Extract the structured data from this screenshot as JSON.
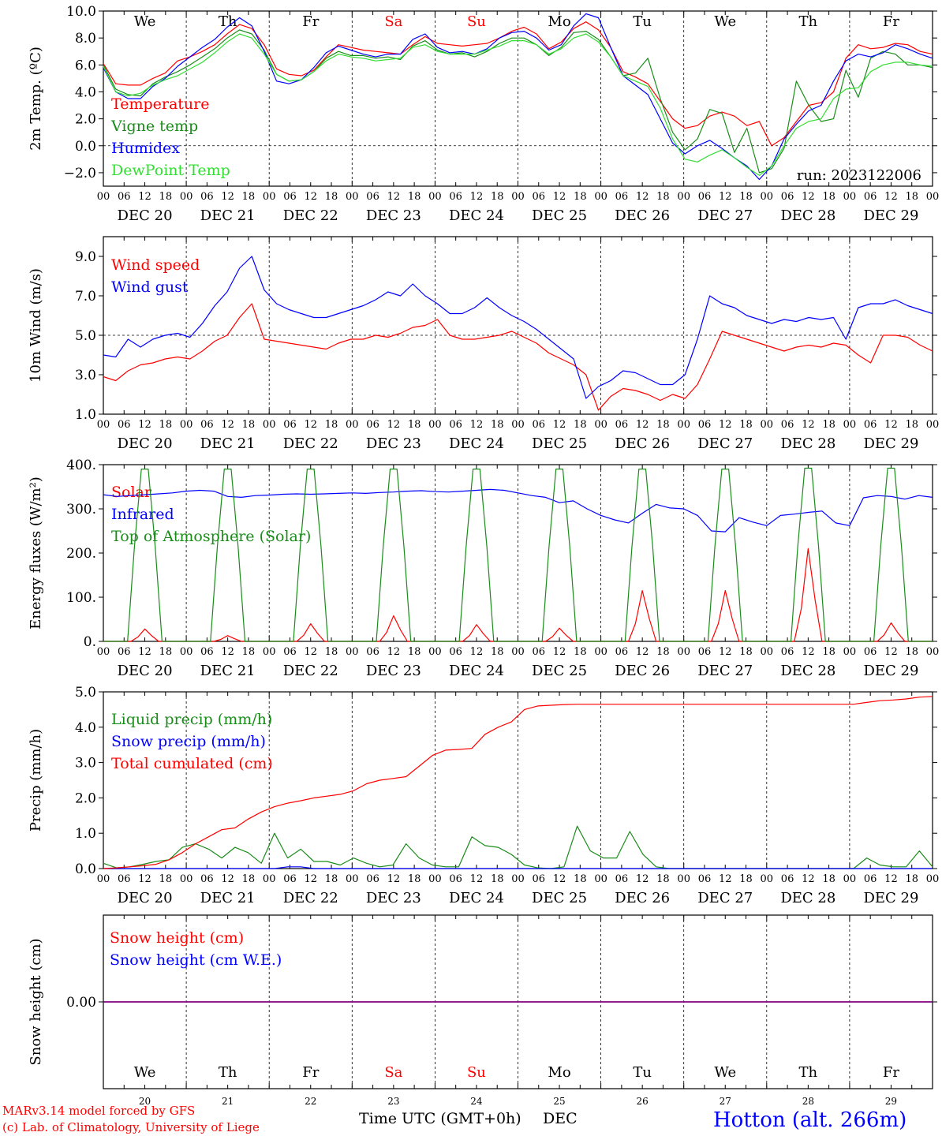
{
  "colors": {
    "red": "#ff0000",
    "green": "#1a8c1a",
    "blue": "#0000ff",
    "lightgreen": "#33dd33",
    "purple": "#800080",
    "black": "#000000"
  },
  "days": [
    "DEC 20",
    "DEC 21",
    "DEC 22",
    "DEC 23",
    "DEC 24",
    "DEC 25",
    "DEC 26",
    "DEC 27",
    "DEC 28",
    "DEC 29"
  ],
  "hour_ticks": [
    "00",
    "06",
    "12",
    "18"
  ],
  "weekdays": [
    "We",
    "Th",
    "Fr",
    "Sa",
    "Su",
    "Mo",
    "Tu",
    "We",
    "Th",
    "Fr"
  ],
  "weekend_flags": [
    false,
    false,
    false,
    true,
    true,
    false,
    false,
    false,
    false,
    false
  ],
  "bottom_day_numbers": [
    "20",
    "21",
    "22",
    "23",
    "24",
    "25",
    "26",
    "27",
    "28",
    "29"
  ],
  "footer": {
    "model": "MARv3.14 model forced by GFS",
    "copyright": "(c) Lab. of Climatology, University of Liege",
    "xlabel": "Time UTC (GMT+0h)",
    "month": "DEC",
    "station": "Hotton (alt. 266m)"
  },
  "chart_data": [
    {
      "type": "line",
      "ylabel": "2m Temp. (ºC)",
      "ylim": [
        -3,
        10
      ],
      "yticks": [
        "10.0",
        "8.0",
        "6.0",
        "4.0",
        "2.0",
        "0.0",
        "−2.0"
      ],
      "ytick_values": [
        10,
        8,
        6,
        4,
        2,
        0,
        -2
      ],
      "ref_line": 0,
      "annotation": "run: 2023122006",
      "x_hours_step": 6,
      "series": [
        {
          "name": "Temperature",
          "color": "red",
          "values": [
            6.1,
            4.6,
            4.5,
            4.5,
            5.0,
            5.4,
            6.3,
            6.6,
            7.0,
            7.5,
            8.3,
            9.0,
            8.7,
            7.5,
            5.7,
            5.3,
            5.2,
            5.6,
            6.6,
            7.5,
            7.3,
            7.1,
            7.0,
            6.9,
            6.8,
            7.5,
            8.1,
            7.6,
            7.5,
            7.4,
            7.5,
            7.6,
            8.0,
            8.5,
            8.8,
            8.3,
            7.2,
            7.7,
            8.7,
            9.2,
            8.6,
            7.3,
            5.5,
            5.1,
            4.6,
            3.3,
            2.0,
            1.3,
            1.5,
            2.2,
            2.5,
            2.2,
            1.5,
            1.8,
            0.0,
            0.6,
            1.8,
            3.0,
            3.2,
            4.0,
            6.5,
            7.5,
            7.2,
            7.3,
            7.6,
            7.5,
            7.0,
            6.8
          ]
        },
        {
          "name": "Vigne temp",
          "color": "green",
          "values": [
            6.0,
            4.2,
            3.8,
            3.7,
            4.6,
            5.1,
            5.5,
            6.0,
            6.6,
            7.2,
            8.0,
            8.6,
            8.3,
            7.1,
            5.3,
            4.8,
            4.9,
            5.5,
            6.5,
            7.0,
            6.7,
            6.7,
            6.5,
            6.6,
            6.4,
            7.4,
            7.8,
            7.1,
            6.8,
            6.9,
            6.6,
            7.0,
            7.6,
            8.0,
            8.0,
            7.5,
            6.7,
            7.3,
            8.4,
            8.5,
            7.9,
            6.6,
            5.2,
            5.4,
            6.5,
            3.5,
            1.0,
            -0.3,
            0.5,
            2.7,
            2.4,
            -0.5,
            1.3,
            -2.0,
            -1.7,
            -0.2,
            4.8,
            3.0,
            1.8,
            2.0,
            5.6,
            3.6,
            6.5,
            7.0,
            6.8,
            6.0,
            6.0,
            5.8
          ]
        },
        {
          "name": "Humidex",
          "color": "blue",
          "values": [
            5.8,
            4.0,
            3.5,
            3.5,
            4.4,
            5.0,
            5.9,
            6.6,
            7.3,
            7.9,
            8.8,
            9.5,
            8.9,
            7.0,
            4.8,
            4.6,
            4.9,
            5.8,
            6.9,
            7.4,
            7.1,
            6.8,
            6.6,
            6.8,
            6.8,
            7.9,
            8.3,
            7.3,
            6.9,
            7.0,
            6.8,
            7.2,
            8.0,
            8.4,
            8.5,
            8.0,
            7.1,
            7.5,
            8.9,
            9.8,
            9.5,
            7.3,
            5.2,
            4.5,
            3.8,
            2.0,
            0.2,
            -0.6,
            0.0,
            0.4,
            -0.2,
            -0.9,
            -1.5,
            -2.5,
            -1.5,
            0.5,
            1.6,
            2.6,
            3.0,
            4.8,
            6.3,
            6.8,
            6.6,
            6.9,
            7.5,
            7.2,
            6.8,
            6.5
          ]
        },
        {
          "name": "DewPoint Temp",
          "color": "lightgreen",
          "values": [
            5.9,
            4.0,
            3.7,
            3.9,
            4.5,
            4.9,
            5.2,
            5.7,
            6.2,
            6.9,
            7.7,
            8.3,
            8.0,
            6.8,
            5.3,
            4.8,
            4.9,
            5.5,
            6.3,
            6.8,
            6.6,
            6.5,
            6.3,
            6.4,
            6.5,
            7.3,
            7.5,
            7.0,
            6.8,
            6.8,
            6.8,
            7.1,
            7.4,
            7.8,
            7.8,
            7.5,
            6.8,
            7.2,
            8.0,
            8.3,
            7.7,
            6.6,
            5.2,
            4.8,
            4.4,
            2.8,
            0.5,
            -1.0,
            -1.2,
            -0.7,
            -0.3,
            -0.9,
            -1.6,
            -2.2,
            -1.5,
            0.0,
            1.3,
            1.8,
            2.0,
            3.5,
            4.2,
            4.3,
            5.5,
            6.0,
            6.2,
            6.2,
            6.0,
            5.9
          ]
        }
      ]
    },
    {
      "type": "line",
      "ylabel": "10m Wind (m/s)",
      "ylim": [
        1,
        10
      ],
      "yticks": [
        "9.0",
        "7.0",
        "5.0",
        "3.0",
        "1.0"
      ],
      "ytick_values": [
        9,
        7,
        5,
        3,
        1
      ],
      "ref_line": 5,
      "x_hours_step": 6,
      "series": [
        {
          "name": "Wind speed",
          "color": "red",
          "values": [
            2.9,
            2.7,
            3.2,
            3.5,
            3.6,
            3.8,
            3.9,
            3.8,
            4.2,
            4.7,
            5.0,
            5.9,
            6.6,
            4.8,
            4.7,
            4.6,
            4.5,
            4.4,
            4.3,
            4.6,
            4.8,
            4.8,
            5.0,
            4.9,
            5.1,
            5.4,
            5.5,
            5.8,
            5.0,
            4.8,
            4.8,
            4.9,
            5.0,
            5.2,
            4.9,
            4.6,
            4.1,
            3.8,
            3.5,
            3.0,
            1.2,
            1.9,
            2.3,
            2.2,
            2.0,
            1.7,
            2.0,
            1.8,
            2.5,
            3.8,
            5.2,
            5.0,
            4.8,
            4.6,
            4.4,
            4.2,
            4.4,
            4.5,
            4.4,
            4.6,
            4.5,
            4.0,
            3.6,
            5.0,
            5.0,
            4.9,
            4.5,
            4.2
          ]
        },
        {
          "name": "Wind gust",
          "color": "blue",
          "values": [
            4.0,
            3.9,
            4.8,
            4.4,
            4.8,
            5.0,
            5.1,
            4.9,
            5.6,
            6.5,
            7.2,
            8.4,
            9.0,
            7.3,
            6.6,
            6.3,
            6.1,
            5.9,
            5.9,
            6.1,
            6.3,
            6.5,
            6.8,
            7.2,
            7.0,
            7.6,
            7.0,
            6.6,
            6.1,
            6.1,
            6.4,
            6.9,
            6.4,
            6.0,
            5.7,
            5.3,
            4.8,
            4.3,
            3.8,
            1.8,
            2.4,
            2.7,
            3.2,
            3.1,
            2.8,
            2.5,
            2.5,
            3.0,
            4.8,
            7.0,
            6.6,
            6.4,
            6.0,
            5.8,
            5.6,
            5.8,
            5.7,
            5.9,
            5.8,
            5.9,
            4.8,
            6.4,
            6.6,
            6.6,
            6.8,
            6.5,
            6.3,
            6.1
          ]
        }
      ]
    },
    {
      "type": "line",
      "ylabel": "Energy fluxes (W/m²)",
      "ylim": [
        0,
        400
      ],
      "yticks": [
        "400.",
        "300.",
        "200.",
        "100.",
        "0."
      ],
      "ytick_values": [
        400,
        300,
        200,
        100,
        0
      ],
      "x_hours_step": 6,
      "series": [
        {
          "name": "Solar",
          "color": "red",
          "daily_peaks": [
            28,
            13,
            40,
            58,
            38,
            30,
            115,
            115,
            210,
            42
          ]
        },
        {
          "name": "Infrared",
          "color": "blue",
          "values": [
            332,
            328,
            330,
            332,
            334,
            336,
            340,
            342,
            340,
            328,
            326,
            330,
            331,
            333,
            334,
            333,
            334,
            335,
            336,
            335,
            337,
            338,
            340,
            341,
            339,
            338,
            340,
            342,
            344,
            342,
            336,
            330,
            326,
            314,
            318,
            300,
            285,
            275,
            268,
            290,
            310,
            302,
            300,
            285,
            250,
            248,
            280,
            270,
            262,
            285,
            288,
            292,
            295,
            268,
            262,
            325,
            330,
            328,
            322,
            330,
            326
          ]
        },
        {
          "name": "Top of Atmosphere (Solar)",
          "color": "green",
          "daily_peaks": [
            390,
            390,
            390,
            390,
            390,
            390,
            390,
            390,
            392,
            392
          ]
        }
      ]
    },
    {
      "type": "line",
      "ylabel": "Precip (mm/h)",
      "ylim": [
        0,
        5
      ],
      "yticks": [
        "5.0",
        "4.0",
        "3.0",
        "2.0",
        "1.0",
        "0.0"
      ],
      "ytick_values": [
        5,
        4,
        3,
        2,
        1,
        0
      ],
      "x_hours_step": 6,
      "series": [
        {
          "name": "Liquid precip (mm/h)",
          "color": "green",
          "values": [
            0.15,
            0.02,
            0.05,
            0.12,
            0.2,
            0.25,
            0.6,
            0.7,
            0.55,
            0.3,
            0.6,
            0.45,
            0.15,
            1.0,
            0.3,
            0.55,
            0.2,
            0.2,
            0.1,
            0.3,
            0.15,
            0.05,
            0.1,
            0.7,
            0.3,
            0.1,
            0.05,
            0.05,
            0.9,
            0.65,
            0.6,
            0.4,
            0.1,
            0.02,
            0.0,
            0.05,
            1.2,
            0.5,
            0.3,
            0.3,
            1.05,
            0.4,
            0.05,
            0.0,
            0.0,
            0.0,
            0.0,
            0.0,
            0.0,
            0.0,
            0.0,
            0.0,
            0.0,
            0.0,
            0.0,
            0.0,
            0.0,
            0.0,
            0.3,
            0.1,
            0.05,
            0.05,
            0.5,
            0.05
          ]
        },
        {
          "name": "Snow precip (mm/h)",
          "color": "blue",
          "values": [
            0,
            0,
            0,
            0,
            0,
            0,
            0,
            0,
            0,
            0,
            0,
            0,
            0,
            0,
            0.05,
            0.05,
            0,
            0,
            0,
            0,
            0,
            0,
            0,
            0,
            0,
            0,
            0,
            0,
            0,
            0,
            0,
            0,
            0,
            0,
            0,
            0,
            0,
            0,
            0,
            0,
            0,
            0,
            0,
            0,
            0,
            0,
            0,
            0,
            0,
            0,
            0,
            0,
            0,
            0,
            0,
            0,
            0,
            0,
            0,
            0,
            0,
            0,
            0,
            0
          ]
        },
        {
          "name": "Total cumulated (cm)",
          "color": "red",
          "values": [
            0.0,
            0.02,
            0.05,
            0.08,
            0.12,
            0.25,
            0.45,
            0.7,
            0.9,
            1.1,
            1.15,
            1.4,
            1.6,
            1.75,
            1.85,
            1.92,
            2.0,
            2.05,
            2.1,
            2.2,
            2.4,
            2.5,
            2.55,
            2.6,
            2.9,
            3.2,
            3.35,
            3.37,
            3.4,
            3.8,
            4.0,
            4.15,
            4.5,
            4.6,
            4.62,
            4.64,
            4.65,
            4.65,
            4.65,
            4.65,
            4.65,
            4.65,
            4.65,
            4.65,
            4.65,
            4.65,
            4.65,
            4.65,
            4.65,
            4.65,
            4.65,
            4.65,
            4.65,
            4.65,
            4.65,
            4.65,
            4.65,
            4.65,
            4.7,
            4.75,
            4.77,
            4.8,
            4.85,
            4.87
          ]
        }
      ]
    },
    {
      "type": "line",
      "ylabel": "Snow height (cm)",
      "ylim": [
        -1,
        1
      ],
      "yticks": [
        "0.00"
      ],
      "ytick_values": [
        0
      ],
      "x_hours_step": 6,
      "series": [
        {
          "name": "Snow height (cm)",
          "color": "red",
          "values": [
            0,
            0
          ]
        },
        {
          "name": "Snow height (cm W.E.)",
          "color": "blue",
          "values": [
            0,
            0
          ]
        }
      ]
    }
  ]
}
